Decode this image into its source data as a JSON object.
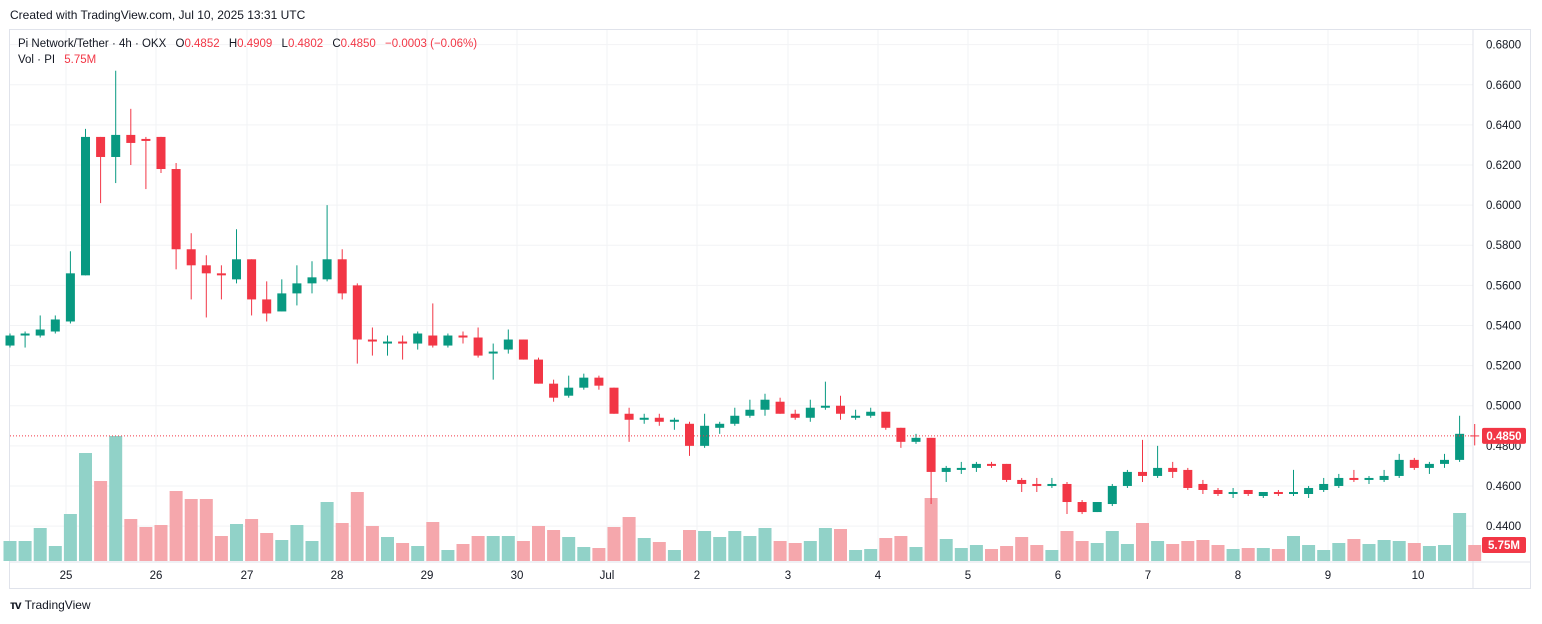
{
  "header": {
    "created": "Created with TradingView.com, Jul 10, 2025 13:31 UTC"
  },
  "legend": {
    "symbol": "Pi Network/Tether · 4h · OKX",
    "o_label": "O",
    "o": "0.4852",
    "h_label": "H",
    "h": "0.4909",
    "l_label": "L",
    "l": "0.4802",
    "c_label": "C",
    "c": "0.4850",
    "change": "−0.0003 (−0.06%)",
    "vol_label": "Vol · PI",
    "vol": "5.75M"
  },
  "footer": {
    "brand": "TradingView"
  },
  "colors": {
    "up": "#089981",
    "down": "#f23645",
    "vol_up": "#91d2c8",
    "vol_down": "#f5a7ac",
    "grid": "#f2f3f5",
    "axis_text": "#131722"
  },
  "chart_data": {
    "type": "candlestick",
    "interval": "4h",
    "y_axis": {
      "position": "right",
      "ticks": [
        "0.6800",
        "0.6600",
        "0.6400",
        "0.6200",
        "0.6000",
        "0.5800",
        "0.5600",
        "0.5400",
        "0.5200",
        "0.5000",
        "0.4800",
        "0.4600",
        "0.4400"
      ],
      "range": [
        0.4221,
        0.6873
      ]
    },
    "x_axis": {
      "ticks": [
        "25",
        "26",
        "27",
        "28",
        "29",
        "30",
        "Jul",
        "2",
        "3",
        "4",
        "5",
        "6",
        "7",
        "8",
        "9",
        "10"
      ]
    },
    "last_price_label": "0.4850",
    "last_volume_label": "5.75M",
    "candles": [
      {
        "o": 0.53,
        "h": 0.536,
        "l": 0.529,
        "c": 0.535,
        "v": 20
      },
      {
        "o": 0.535,
        "h": 0.537,
        "l": 0.529,
        "c": 0.536,
        "v": 20
      },
      {
        "o": 0.535,
        "h": 0.545,
        "l": 0.534,
        "c": 0.538,
        "v": 33
      },
      {
        "o": 0.537,
        "h": 0.545,
        "l": 0.536,
        "c": 0.543,
        "v": 15
      },
      {
        "o": 0.542,
        "h": 0.577,
        "l": 0.541,
        "c": 0.566,
        "v": 47
      },
      {
        "o": 0.565,
        "h": 0.638,
        "l": 0.565,
        "c": 0.634,
        "v": 108
      },
      {
        "o": 0.634,
        "h": 0.634,
        "l": 0.601,
        "c": 0.624,
        "v": 80
      },
      {
        "o": 0.624,
        "h": 0.667,
        "l": 0.611,
        "c": 0.635,
        "v": 125
      },
      {
        "o": 0.635,
        "h": 0.648,
        "l": 0.62,
        "c": 0.631,
        "v": 42
      },
      {
        "o": 0.633,
        "h": 0.634,
        "l": 0.608,
        "c": 0.632,
        "v": 34
      },
      {
        "o": 0.634,
        "h": 0.634,
        "l": 0.616,
        "c": 0.618,
        "v": 36
      },
      {
        "o": 0.618,
        "h": 0.621,
        "l": 0.568,
        "c": 0.578,
        "v": 70
      },
      {
        "o": 0.578,
        "h": 0.586,
        "l": 0.553,
        "c": 0.57,
        "v": 62
      },
      {
        "o": 0.57,
        "h": 0.575,
        "l": 0.544,
        "c": 0.566,
        "v": 62
      },
      {
        "o": 0.566,
        "h": 0.57,
        "l": 0.553,
        "c": 0.565,
        "v": 25
      },
      {
        "o": 0.563,
        "h": 0.588,
        "l": 0.561,
        "c": 0.573,
        "v": 37
      },
      {
        "o": 0.573,
        "h": 0.573,
        "l": 0.545,
        "c": 0.553,
        "v": 42
      },
      {
        "o": 0.553,
        "h": 0.562,
        "l": 0.542,
        "c": 0.546,
        "v": 28
      },
      {
        "o": 0.547,
        "h": 0.563,
        "l": 0.547,
        "c": 0.556,
        "v": 21
      },
      {
        "o": 0.556,
        "h": 0.57,
        "l": 0.55,
        "c": 0.561,
        "v": 36
      },
      {
        "o": 0.561,
        "h": 0.572,
        "l": 0.556,
        "c": 0.564,
        "v": 20
      },
      {
        "o": 0.563,
        "h": 0.6,
        "l": 0.562,
        "c": 0.573,
        "v": 59
      },
      {
        "o": 0.573,
        "h": 0.578,
        "l": 0.553,
        "c": 0.556,
        "v": 38
      },
      {
        "o": 0.56,
        "h": 0.561,
        "l": 0.521,
        "c": 0.533,
        "v": 69
      },
      {
        "o": 0.533,
        "h": 0.539,
        "l": 0.525,
        "c": 0.532,
        "v": 35
      },
      {
        "o": 0.531,
        "h": 0.535,
        "l": 0.525,
        "c": 0.532,
        "v": 24
      },
      {
        "o": 0.532,
        "h": 0.535,
        "l": 0.523,
        "c": 0.531,
        "v": 18
      },
      {
        "o": 0.531,
        "h": 0.537,
        "l": 0.528,
        "c": 0.536,
        "v": 15
      },
      {
        "o": 0.535,
        "h": 0.551,
        "l": 0.529,
        "c": 0.53,
        "v": 39
      },
      {
        "o": 0.53,
        "h": 0.536,
        "l": 0.529,
        "c": 0.535,
        "v": 11
      },
      {
        "o": 0.535,
        "h": 0.537,
        "l": 0.531,
        "c": 0.534,
        "v": 17
      },
      {
        "o": 0.534,
        "h": 0.539,
        "l": 0.524,
        "c": 0.525,
        "v": 25
      },
      {
        "o": 0.526,
        "h": 0.531,
        "l": 0.513,
        "c": 0.527,
        "v": 25
      },
      {
        "o": 0.528,
        "h": 0.538,
        "l": 0.526,
        "c": 0.533,
        "v": 25
      },
      {
        "o": 0.533,
        "h": 0.533,
        "l": 0.523,
        "c": 0.523,
        "v": 20
      },
      {
        "o": 0.523,
        "h": 0.524,
        "l": 0.511,
        "c": 0.511,
        "v": 35
      },
      {
        "o": 0.511,
        "h": 0.513,
        "l": 0.502,
        "c": 0.504,
        "v": 31
      },
      {
        "o": 0.505,
        "h": 0.515,
        "l": 0.504,
        "c": 0.509,
        "v": 24
      },
      {
        "o": 0.509,
        "h": 0.516,
        "l": 0.508,
        "c": 0.514,
        "v": 14
      },
      {
        "o": 0.514,
        "h": 0.515,
        "l": 0.508,
        "c": 0.51,
        "v": 13
      },
      {
        "o": 0.509,
        "h": 0.509,
        "l": 0.496,
        "c": 0.496,
        "v": 34
      },
      {
        "o": 0.496,
        "h": 0.499,
        "l": 0.482,
        "c": 0.493,
        "v": 44
      },
      {
        "o": 0.493,
        "h": 0.496,
        "l": 0.491,
        "c": 0.494,
        "v": 23
      },
      {
        "o": 0.494,
        "h": 0.496,
        "l": 0.49,
        "c": 0.492,
        "v": 19
      },
      {
        "o": 0.492,
        "h": 0.494,
        "l": 0.488,
        "c": 0.493,
        "v": 11
      },
      {
        "o": 0.491,
        "h": 0.492,
        "l": 0.475,
        "c": 0.48,
        "v": 31
      },
      {
        "o": 0.48,
        "h": 0.496,
        "l": 0.479,
        "c": 0.49,
        "v": 30
      },
      {
        "o": 0.489,
        "h": 0.492,
        "l": 0.486,
        "c": 0.491,
        "v": 24
      },
      {
        "o": 0.491,
        "h": 0.499,
        "l": 0.49,
        "c": 0.495,
        "v": 30
      },
      {
        "o": 0.495,
        "h": 0.503,
        "l": 0.494,
        "c": 0.498,
        "v": 25
      },
      {
        "o": 0.498,
        "h": 0.506,
        "l": 0.495,
        "c": 0.503,
        "v": 33
      },
      {
        "o": 0.502,
        "h": 0.504,
        "l": 0.496,
        "c": 0.496,
        "v": 20
      },
      {
        "o": 0.496,
        "h": 0.498,
        "l": 0.493,
        "c": 0.494,
        "v": 18
      },
      {
        "o": 0.494,
        "h": 0.503,
        "l": 0.492,
        "c": 0.499,
        "v": 20
      },
      {
        "o": 0.499,
        "h": 0.512,
        "l": 0.498,
        "c": 0.5,
        "v": 33
      },
      {
        "o": 0.5,
        "h": 0.505,
        "l": 0.493,
        "c": 0.496,
        "v": 32
      },
      {
        "o": 0.494,
        "h": 0.498,
        "l": 0.493,
        "c": 0.495,
        "v": 11
      },
      {
        "o": 0.495,
        "h": 0.499,
        "l": 0.494,
        "c": 0.497,
        "v": 12
      },
      {
        "o": 0.497,
        "h": 0.497,
        "l": 0.488,
        "c": 0.489,
        "v": 23
      },
      {
        "o": 0.489,
        "h": 0.489,
        "l": 0.479,
        "c": 0.482,
        "v": 25
      },
      {
        "o": 0.482,
        "h": 0.486,
        "l": 0.481,
        "c": 0.484,
        "v": 14
      },
      {
        "o": 0.484,
        "h": 0.484,
        "l": 0.451,
        "c": 0.467,
        "v": 63
      },
      {
        "o": 0.467,
        "h": 0.47,
        "l": 0.462,
        "c": 0.469,
        "v": 22
      },
      {
        "o": 0.468,
        "h": 0.472,
        "l": 0.466,
        "c": 0.469,
        "v": 13
      },
      {
        "o": 0.469,
        "h": 0.472,
        "l": 0.467,
        "c": 0.471,
        "v": 16
      },
      {
        "o": 0.471,
        "h": 0.472,
        "l": 0.469,
        "c": 0.47,
        "v": 12
      },
      {
        "o": 0.471,
        "h": 0.471,
        "l": 0.462,
        "c": 0.463,
        "v": 15
      },
      {
        "o": 0.463,
        "h": 0.464,
        "l": 0.457,
        "c": 0.461,
        "v": 24
      },
      {
        "o": 0.461,
        "h": 0.464,
        "l": 0.457,
        "c": 0.46,
        "v": 16
      },
      {
        "o": 0.46,
        "h": 0.464,
        "l": 0.459,
        "c": 0.461,
        "v": 11
      },
      {
        "o": 0.461,
        "h": 0.462,
        "l": 0.446,
        "c": 0.452,
        "v": 30
      },
      {
        "o": 0.452,
        "h": 0.453,
        "l": 0.446,
        "c": 0.447,
        "v": 20
      },
      {
        "o": 0.447,
        "h": 0.452,
        "l": 0.447,
        "c": 0.452,
        "v": 18
      },
      {
        "o": 0.451,
        "h": 0.461,
        "l": 0.45,
        "c": 0.46,
        "v": 30
      },
      {
        "o": 0.46,
        "h": 0.468,
        "l": 0.459,
        "c": 0.467,
        "v": 17
      },
      {
        "o": 0.467,
        "h": 0.483,
        "l": 0.462,
        "c": 0.465,
        "v": 38
      },
      {
        "o": 0.465,
        "h": 0.48,
        "l": 0.464,
        "c": 0.469,
        "v": 20
      },
      {
        "o": 0.469,
        "h": 0.472,
        "l": 0.464,
        "c": 0.467,
        "v": 17
      },
      {
        "o": 0.468,
        "h": 0.469,
        "l": 0.458,
        "c": 0.459,
        "v": 20
      },
      {
        "o": 0.461,
        "h": 0.463,
        "l": 0.456,
        "c": 0.458,
        "v": 21
      },
      {
        "o": 0.458,
        "h": 0.459,
        "l": 0.455,
        "c": 0.456,
        "v": 16
      },
      {
        "o": 0.456,
        "h": 0.459,
        "l": 0.454,
        "c": 0.457,
        "v": 12
      },
      {
        "o": 0.458,
        "h": 0.458,
        "l": 0.455,
        "c": 0.456,
        "v": 13
      },
      {
        "o": 0.455,
        "h": 0.457,
        "l": 0.454,
        "c": 0.457,
        "v": 13
      },
      {
        "o": 0.457,
        "h": 0.458,
        "l": 0.455,
        "c": 0.456,
        "v": 12
      },
      {
        "o": 0.456,
        "h": 0.468,
        "l": 0.455,
        "c": 0.457,
        "v": 25
      },
      {
        "o": 0.456,
        "h": 0.46,
        "l": 0.454,
        "c": 0.459,
        "v": 16
      },
      {
        "o": 0.458,
        "h": 0.464,
        "l": 0.457,
        "c": 0.461,
        "v": 11
      },
      {
        "o": 0.46,
        "h": 0.466,
        "l": 0.459,
        "c": 0.464,
        "v": 18
      },
      {
        "o": 0.464,
        "h": 0.468,
        "l": 0.462,
        "c": 0.463,
        "v": 22
      },
      {
        "o": 0.463,
        "h": 0.465,
        "l": 0.461,
        "c": 0.464,
        "v": 17
      },
      {
        "o": 0.463,
        "h": 0.468,
        "l": 0.462,
        "c": 0.465,
        "v": 21
      },
      {
        "o": 0.465,
        "h": 0.476,
        "l": 0.464,
        "c": 0.473,
        "v": 20
      },
      {
        "o": 0.473,
        "h": 0.474,
        "l": 0.468,
        "c": 0.469,
        "v": 18
      },
      {
        "o": 0.469,
        "h": 0.472,
        "l": 0.466,
        "c": 0.471,
        "v": 15
      },
      {
        "o": 0.471,
        "h": 0.476,
        "l": 0.469,
        "c": 0.473,
        "v": 16
      },
      {
        "o": 0.473,
        "h": 0.495,
        "l": 0.472,
        "c": 0.486,
        "v": 48
      },
      {
        "o": 0.4852,
        "h": 0.4909,
        "l": 0.4802,
        "c": 0.485,
        "v": 16
      }
    ]
  }
}
